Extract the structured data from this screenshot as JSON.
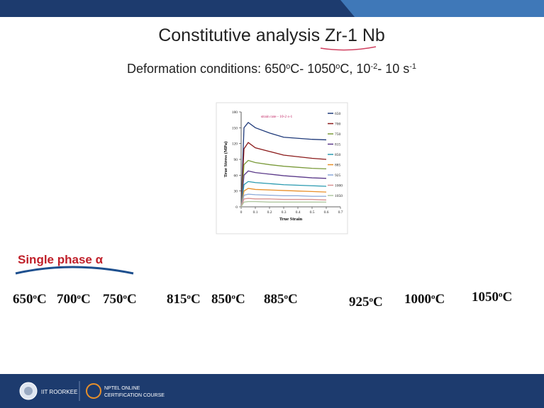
{
  "header": {
    "title": "Constitutive analysis Zr-1 Nb",
    "subtitle": [
      {
        "text": "Deformation conditions: 650",
        "sup": false
      },
      {
        "text": "o",
        "sup": true
      },
      {
        "text": "C- 1050",
        "sup": false
      },
      {
        "text": "o",
        "sup": true
      },
      {
        "text": "C, 10",
        "sup": false
      },
      {
        "text": "-2",
        "sup": true
      },
      {
        "text": "- 10 s",
        "sup": false
      },
      {
        "text": "-1",
        "sup": true
      }
    ]
  },
  "chart_data": {
    "type": "line",
    "annotation": "strain rate - 10-2 s-1",
    "xlabel": "True Strain",
    "ylabel": "True Stress (MPa)",
    "x": [
      0,
      0.02,
      0.05,
      0.1,
      0.2,
      0.3,
      0.4,
      0.5,
      0.6
    ],
    "xlim": [
      0,
      0.7
    ],
    "xticks": [
      0,
      0.1,
      0.2,
      0.3,
      0.4,
      0.5,
      0.6,
      0.7
    ],
    "ylim": [
      0,
      180
    ],
    "yticks": [
      0,
      30,
      60,
      90,
      120,
      150,
      180
    ],
    "series": [
      {
        "name": "650",
        "color": "#1f3a7a",
        "values": [
          0,
          150,
          160,
          150,
          140,
          132,
          130,
          128,
          127
        ]
      },
      {
        "name": "700",
        "color": "#8b1a1a",
        "values": [
          0,
          110,
          122,
          112,
          105,
          98,
          95,
          92,
          90
        ]
      },
      {
        "name": "750",
        "color": "#7a9a3a",
        "values": [
          0,
          80,
          88,
          84,
          80,
          77,
          75,
          73,
          72
        ]
      },
      {
        "name": "815",
        "color": "#5b3a8a",
        "values": [
          0,
          60,
          68,
          65,
          62,
          59,
          57,
          55,
          54
        ]
      },
      {
        "name": "850",
        "color": "#2a9ab0",
        "values": [
          0,
          42,
          48,
          46,
          44,
          42,
          41,
          40,
          39
        ]
      },
      {
        "name": "885",
        "color": "#e8902a",
        "values": [
          0,
          30,
          35,
          33,
          32,
          31,
          30,
          29,
          28
        ]
      },
      {
        "name": "925",
        "color": "#8aa8d8",
        "values": [
          0,
          22,
          24,
          23,
          22,
          21,
          21,
          20,
          20
        ]
      },
      {
        "name": "1000",
        "color": "#d89090",
        "values": [
          0,
          15,
          16,
          15,
          15,
          14,
          14,
          14,
          13
        ]
      },
      {
        "name": "1050",
        "color": "#b0c8a0",
        "values": [
          0,
          9,
          10,
          10,
          9,
          9,
          9,
          9,
          9
        ]
      }
    ]
  },
  "phase_label": "Single phase α",
  "temperatures": [
    {
      "num": "650",
      "sup": "o",
      "unit": "C"
    },
    {
      "num": "700",
      "sup": "o",
      "unit": "C"
    },
    {
      "num": "750",
      "sup": "o",
      "unit": "C"
    },
    {
      "num": "815",
      "sup": "o",
      "unit": "C"
    },
    {
      "num": "850",
      "sup": "o",
      "unit": "C"
    },
    {
      "num": "885",
      "sup": "o",
      "unit": "C"
    },
    {
      "num": "925",
      "sup": "o",
      "unit": "C"
    },
    {
      "num": "1000",
      "sup": "o",
      "unit": "C"
    },
    {
      "num": "1050",
      "sup": "o",
      "unit": "C"
    }
  ],
  "footer": {
    "institute": "IIT ROORKEE",
    "course_line1": "NPTEL ONLINE",
    "course_line2": "CERTIFICATION COURSE"
  }
}
